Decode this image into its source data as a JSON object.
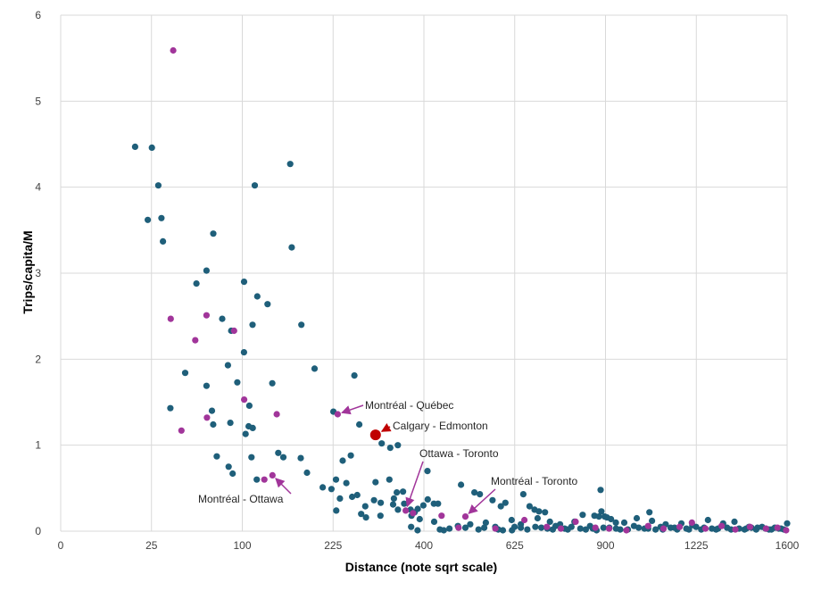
{
  "colors": {
    "primary": "#1F5F7A",
    "secondary": "#A1359A",
    "highlight": "#C00000",
    "grid": "#D9D9D9"
  },
  "chart_data": {
    "type": "scatter",
    "xlabel": "Distance (note sqrt scale)",
    "ylabel": "Trips/capita/M",
    "x_scale": "sqrt",
    "xlim": [
      0,
      1600
    ],
    "ylim": [
      0,
      6
    ],
    "x_ticks": [
      "0",
      "25",
      "100",
      "225",
      "400",
      "625",
      "900",
      "1225",
      "1600"
    ],
    "x_tick_values": [
      0,
      25,
      100,
      225,
      400,
      625,
      900,
      1225,
      1600
    ],
    "y_ticks": [
      "0",
      "1",
      "2",
      "3",
      "4",
      "5",
      "6"
    ],
    "y_tick_values": [
      0,
      1,
      2,
      3,
      4,
      5,
      6
    ],
    "grid": true,
    "series": [
      {
        "color": "#1F5F7A",
        "points": [
          [
            16.8,
            4.47
          ],
          [
            25.2,
            4.46
          ],
          [
            28.9,
            4.02
          ],
          [
            30.8,
            3.64
          ],
          [
            31.7,
            3.37
          ],
          [
            23.0,
            3.62
          ],
          [
            114.2,
            4.02
          ],
          [
            159.8,
            4.27
          ],
          [
            161.8,
            3.3
          ],
          [
            70.6,
            3.46
          ],
          [
            64.5,
            3.03
          ],
          [
            55.9,
            2.88
          ],
          [
            102.0,
            2.9
          ],
          [
            117.2,
            2.73
          ],
          [
            129.7,
            2.64
          ],
          [
            111.6,
            2.4
          ],
          [
            79.1,
            2.47
          ],
          [
            175.6,
            2.4
          ],
          [
            101.9,
            2.08
          ],
          [
            88.2,
            2.33
          ],
          [
            84.8,
            1.93
          ],
          [
            195.4,
            1.89
          ],
          [
            47.0,
            1.84
          ],
          [
            94.6,
            1.73
          ],
          [
            64.5,
            1.69
          ],
          [
            261.6,
            1.81
          ],
          [
            135.7,
            1.72
          ],
          [
            36.5,
            1.43
          ],
          [
            69.4,
            1.4
          ],
          [
            107.9,
            1.46
          ],
          [
            225.5,
            1.39
          ],
          [
            70.5,
            1.24
          ],
          [
            107.1,
            1.22
          ],
          [
            87.3,
            1.26
          ],
          [
            103.7,
            1.13
          ],
          [
            111.8,
            1.2
          ],
          [
            270.4,
            1.24
          ],
          [
            312.4,
            1.02
          ],
          [
            344.6,
            1.0
          ],
          [
            329.4,
            0.97
          ],
          [
            73.9,
            0.87
          ],
          [
            85.5,
            0.75
          ],
          [
            89.7,
            0.67
          ],
          [
            110.4,
            0.86
          ],
          [
            116.6,
            0.6
          ],
          [
            150.3,
            0.86
          ],
          [
            143.5,
            0.91
          ],
          [
            174.7,
            0.85
          ],
          [
            183.9,
            0.68
          ],
          [
            241.2,
            0.82
          ],
          [
            255.2,
            0.88
          ],
          [
            229.8,
            0.6
          ],
          [
            208.2,
            0.51
          ],
          [
            247.4,
            0.56
          ],
          [
            300.6,
            0.57
          ],
          [
            327.6,
            0.6
          ],
          [
            355.4,
            0.46
          ],
          [
            407.9,
            0.7
          ],
          [
            408.5,
            0.37
          ],
          [
            422.3,
            0.32
          ],
          [
            431.6,
            0.32
          ],
          [
            398.8,
            0.3
          ],
          [
            386.6,
            0.26
          ],
          [
            357.7,
            0.32
          ],
          [
            371.2,
            0.25
          ],
          [
            379.9,
            0.22
          ],
          [
            336.6,
            0.38
          ],
          [
            342.5,
            0.45
          ],
          [
            335.0,
            0.31
          ],
          [
            310.6,
            0.33
          ],
          [
            297.7,
            0.36
          ],
          [
            281.3,
            0.29
          ],
          [
            266.7,
            0.42
          ],
          [
            257.6,
            0.4
          ],
          [
            236.4,
            0.38
          ],
          [
            222.3,
            0.49
          ],
          [
            230.3,
            0.24
          ],
          [
            273.8,
            0.2
          ],
          [
            282.6,
            0.16
          ],
          [
            310.0,
            0.18
          ],
          [
            344.9,
            0.25
          ],
          [
            373.1,
            0.18
          ],
          [
            390.8,
            0.14
          ],
          [
            372.4,
            0.05
          ],
          [
            386.2,
            0.01
          ],
          [
            422.9,
            0.11
          ],
          [
            436.0,
            0.02
          ],
          [
            445.0,
            0.01
          ],
          [
            486.0,
            0.54
          ],
          [
            508.5,
            0.08
          ],
          [
            518.9,
            0.45
          ],
          [
            532.7,
            0.43
          ],
          [
            565.5,
            0.36
          ],
          [
            587.4,
            0.29
          ],
          [
            599.6,
            0.33
          ],
          [
            496.7,
            0.04
          ],
          [
            548.0,
            0.1
          ],
          [
            572.7,
            0.05
          ],
          [
            616.6,
            0.13
          ],
          [
            641.9,
            0.08
          ],
          [
            648.9,
            0.43
          ],
          [
            680.8,
            0.25
          ],
          [
            693.4,
            0.23
          ],
          [
            711.1,
            0.22
          ],
          [
            666.6,
            0.29
          ],
          [
            689.5,
            0.15
          ],
          [
            725.8,
            0.11
          ],
          [
            756.2,
            0.08
          ],
          [
            800.2,
            0.11
          ],
          [
            826.0,
            0.19
          ],
          [
            863.8,
            0.18
          ],
          [
            878.4,
            0.17
          ],
          [
            883.8,
            0.48
          ],
          [
            886.4,
            0.23
          ],
          [
            897.3,
            0.17
          ],
          [
            904.6,
            0.16
          ],
          [
            918.4,
            0.14
          ],
          [
            934.5,
            0.1
          ],
          [
            963.1,
            0.1
          ],
          [
            1006.2,
            0.15
          ],
          [
            1050.9,
            0.22
          ],
          [
            1060.2,
            0.12
          ],
          [
            1109.7,
            0.08
          ],
          [
            1168.2,
            0.09
          ],
          [
            1209.8,
            0.07
          ],
          [
            1270.3,
            0.13
          ],
          [
            1330.7,
            0.09
          ],
          [
            1376.3,
            0.11
          ],
          [
            1436.5,
            0.05
          ],
          [
            1491.3,
            0.05
          ],
          [
            1563.6,
            0.03
          ],
          [
            1600.0,
            0.09
          ],
          [
            478.3,
            0.06
          ],
          [
            458.1,
            0.03
          ],
          [
            529.4,
            0.02
          ],
          [
            592.8,
            0.01
          ],
          [
            617.5,
            0.01
          ],
          [
            642.0,
            0.04
          ],
          [
            683.3,
            0.05
          ],
          [
            718.4,
            0.03
          ],
          [
            742.7,
            0.06
          ],
          [
            779.5,
            0.02
          ],
          [
            818.8,
            0.03
          ],
          [
            849.8,
            0.06
          ],
          [
            870.7,
            0.01
          ],
          [
            912.7,
            0.04
          ],
          [
            935.1,
            0.03
          ],
          [
            975.3,
            0.02
          ],
          [
            996.5,
            0.06
          ],
          [
            1033.6,
            0.03
          ],
          [
            1073.0,
            0.02
          ],
          [
            1091.5,
            0.05
          ],
          [
            1128.0,
            0.04
          ],
          [
            1152.2,
            0.02
          ],
          [
            1186.8,
            0.03
          ],
          [
            1224.3,
            0.05
          ],
          [
            1244.2,
            0.02
          ],
          [
            1285.8,
            0.03
          ],
          [
            1302.3,
            0.02
          ],
          [
            1346.3,
            0.04
          ],
          [
            1395.6,
            0.03
          ],
          [
            1418.1,
            0.02
          ],
          [
            1446.6,
            0.04
          ],
          [
            1466.6,
            0.02
          ],
          [
            1506.5,
            0.03
          ],
          [
            1531.6,
            0.02
          ],
          [
            1546.3,
            0.04
          ],
          [
            1585.8,
            0.02
          ],
          [
            544.0,
            0.04
          ],
          [
            580.5,
            0.02
          ],
          [
            624.6,
            0.05
          ],
          [
            660.2,
            0.02
          ],
          [
            700.4,
            0.04
          ],
          [
            734.3,
            0.02
          ],
          [
            769.9,
            0.03
          ],
          [
            790.9,
            0.05
          ],
          [
            835.9,
            0.02
          ],
          [
            858.5,
            0.03
          ],
          [
            893.1,
            0.04
          ],
          [
            949.4,
            0.02
          ],
          [
            1013.0,
            0.04
          ],
          [
            1046.6,
            0.03
          ],
          [
            1099.1,
            0.02
          ],
          [
            1142.6,
            0.04
          ],
          [
            1196.8,
            0.02
          ],
          [
            1255.3,
            0.04
          ],
          [
            1310.2,
            0.03
          ],
          [
            1362.8,
            0.02
          ],
          [
            1425.2,
            0.03
          ],
          [
            1472.3,
            0.04
          ],
          [
            1521.2,
            0.02
          ],
          [
            1573.5,
            0.03
          ]
        ]
      },
      {
        "color": "#A1359A",
        "points": [
          [
            38.4,
            5.59
          ],
          [
            36.7,
            2.47
          ],
          [
            64.5,
            2.51
          ],
          [
            91.2,
            2.33
          ],
          [
            54.9,
            2.22
          ],
          [
            102.1,
            1.53
          ],
          [
            64.9,
            1.32
          ],
          [
            141.5,
            1.36
          ],
          [
            44.2,
            1.17
          ],
          [
            232.6,
            1.36
          ],
          [
            136.0,
            0.65
          ],
          [
            125.8,
            0.6
          ],
          [
            361.0,
            0.24
          ],
          [
            376.6,
            0.21
          ],
          [
            439.9,
            0.18
          ],
          [
            496.7,
            0.17
          ],
          [
            480.0,
            0.04
          ],
          [
            573.0,
            0.03
          ],
          [
            651.9,
            0.13
          ],
          [
            716.7,
            0.05
          ],
          [
            758.6,
            0.03
          ],
          [
            803.8,
            0.11
          ],
          [
            867.1,
            0.04
          ],
          [
            911.7,
            0.03
          ],
          [
            970.3,
            0.01
          ],
          [
            1046.6,
            0.06
          ],
          [
            1101.9,
            0.03
          ],
          [
            1161.5,
            0.05
          ],
          [
            1207.9,
            0.1
          ],
          [
            1260.6,
            0.03
          ],
          [
            1324.5,
            0.06
          ],
          [
            1380.0,
            0.02
          ],
          [
            1440.8,
            0.05
          ],
          [
            1508.0,
            0.03
          ],
          [
            1557.8,
            0.04
          ],
          [
            1595.7,
            0.01
          ]
        ]
      }
    ],
    "highlight_point": {
      "label": "Calgary - Edmonton",
      "x": 300.6,
      "y": 1.12
    },
    "annotations": [
      {
        "text": "Montréal - Québec",
        "x": 232.6,
        "y": 1.36
      },
      {
        "text": "Calgary - Edmonton",
        "x": 300.6,
        "y": 1.12
      },
      {
        "text": "Ottawa - Toronto",
        "x": 361.0,
        "y": 0.24
      },
      {
        "text": "Montréal - Toronto",
        "x": 496.7,
        "y": 0.17
      },
      {
        "text": "Montréal - Ottawa",
        "x": 136.0,
        "y": 0.65
      }
    ]
  }
}
